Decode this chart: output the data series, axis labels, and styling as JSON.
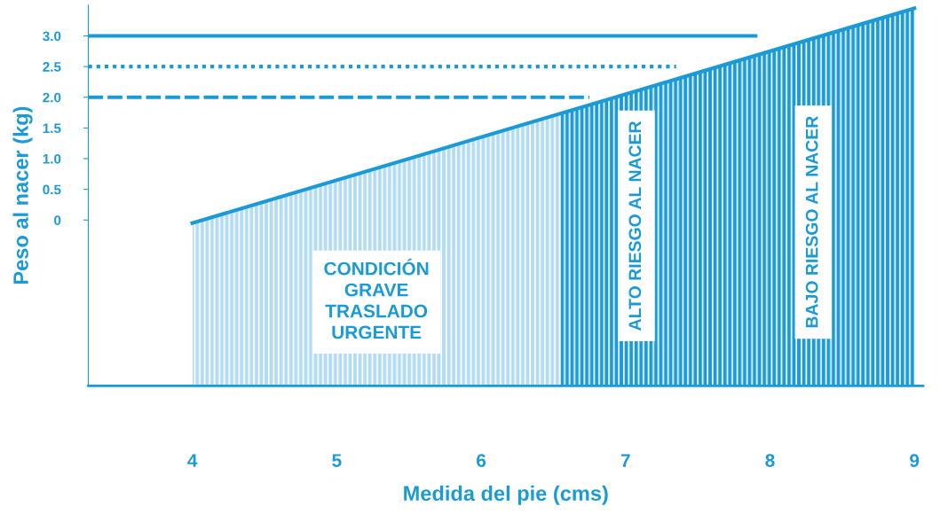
{
  "chart_data": {
    "type": "line",
    "xlabel": "Medida del pie (cms)",
    "ylabel": "Peso al nacer (kg)",
    "xlim": [
      3.28,
      9.06
    ],
    "xticks": [
      4,
      5,
      6,
      7,
      8,
      9
    ],
    "ylim": [
      -2.7,
      3.5
    ],
    "yticks": [
      {
        "value": 0,
        "label": "0"
      },
      0.5,
      {
        "value": 1,
        "label": "1.0"
      },
      1.5,
      {
        "value": 2,
        "label": "2.0"
      },
      2.5,
      {
        "value": 3,
        "label": "3.0"
      }
    ],
    "grid": false,
    "series": [
      {
        "color": "#1a9ad6",
        "x": [
          4,
          9
        ],
        "values": [
          -0.05,
          3.45
        ],
        "line_style": "solid"
      },
      {
        "color": "#1a9ad6",
        "x": [
          3.28,
          7.9
        ],
        "values": [
          3.0,
          3.0
        ],
        "line_style": "solid"
      },
      {
        "color": "#1a9ad6",
        "x": [
          3.28,
          7.35
        ],
        "values": [
          2.5,
          2.5
        ],
        "line_style": "dotted"
      },
      {
        "color": "#1a9ad6",
        "x": [
          3.28,
          6.75
        ],
        "values": [
          2.0,
          2.0
        ],
        "line_style": "dashed"
      }
    ],
    "bands": [
      {
        "axis": "x",
        "from": 4,
        "to": 6.55,
        "color": "#b3dcf2",
        "label": "CONDICIÓN\nGRAVE\nTRASLADO\nURGENTE"
      },
      {
        "axis": "x",
        "from": 6.55,
        "to": 7.6,
        "color": "#1a9ad6",
        "label": "ALTO RIESGO AL NACER"
      },
      {
        "axis": "x",
        "from": 7.6,
        "to": 9,
        "color": "#1a9ad6",
        "label": "BAJO RIESGO AL NACER"
      }
    ]
  }
}
